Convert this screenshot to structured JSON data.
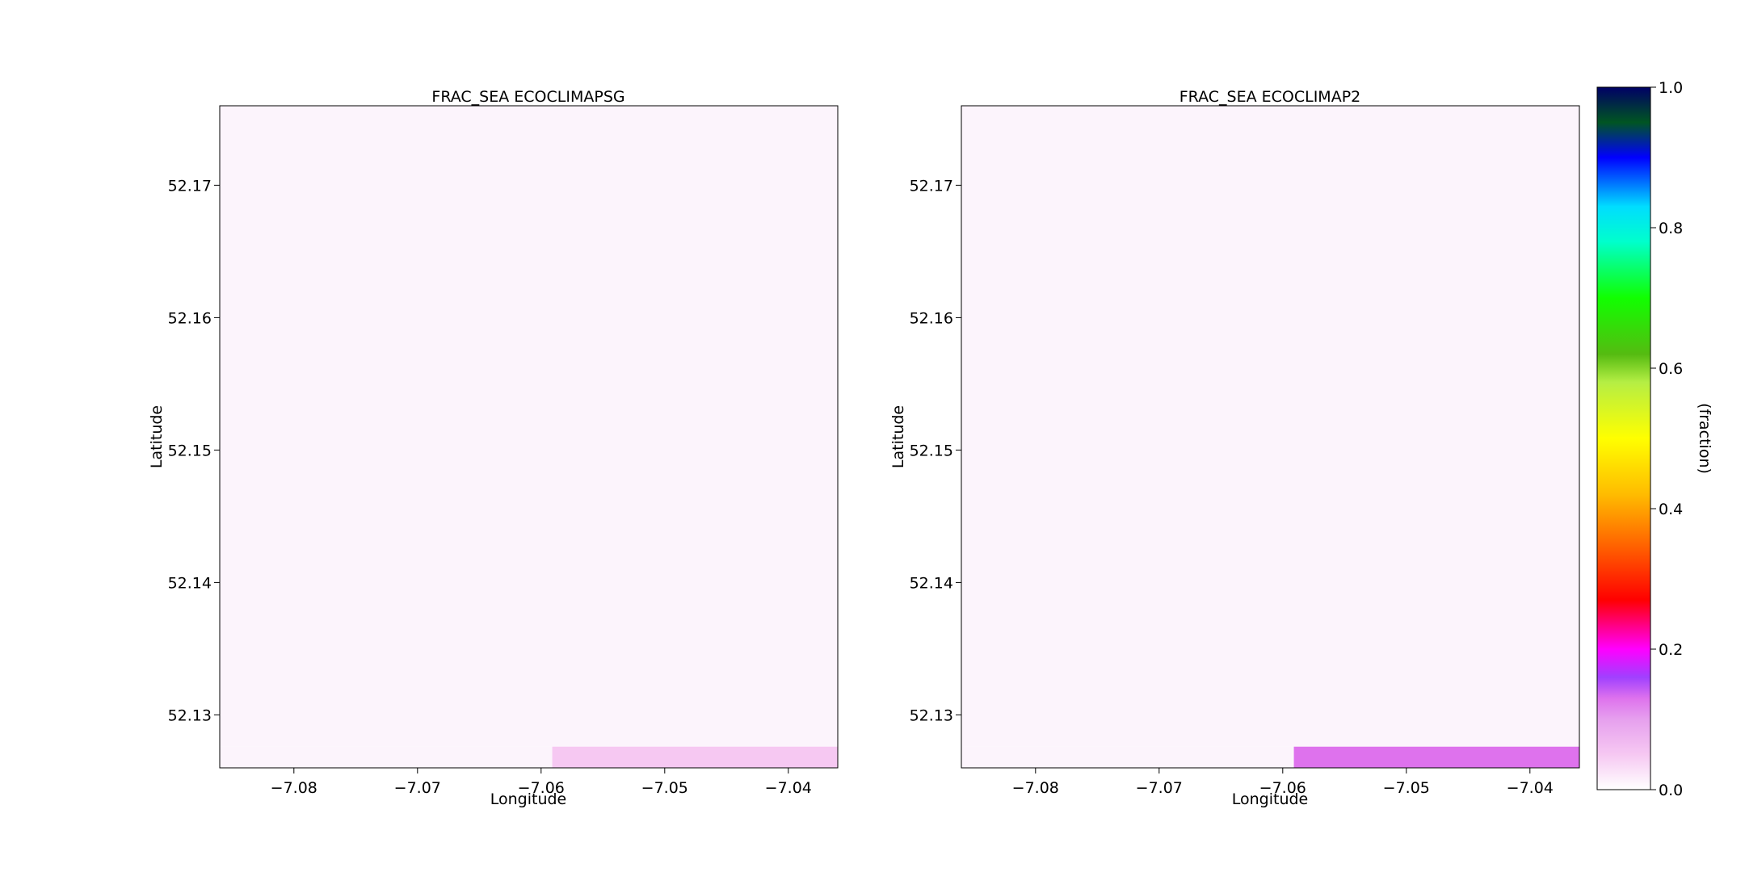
{
  "chart_data": [
    {
      "type": "heatmap",
      "title": "FRAC_SEA ECOCLIMAPSG",
      "xlabel": "Longitude",
      "ylabel": "Latitude",
      "xlim": [
        -7.086,
        -7.036
      ],
      "ylim": [
        52.126,
        52.176
      ],
      "xticks": [
        -7.08,
        -7.07,
        -7.06,
        -7.05,
        -7.04
      ],
      "xtick_labels": [
        "−7.08",
        "−7.07",
        "−7.06",
        "−7.05",
        "−7.04"
      ],
      "yticks": [
        52.13,
        52.14,
        52.15,
        52.16,
        52.17
      ],
      "ytick_labels": [
        "52.13",
        "52.14",
        "52.15",
        "52.16",
        "52.17"
      ],
      "cells": [
        {
          "x0": -7.086,
          "x1": -7.036,
          "y0": 52.1276,
          "y1": 52.176,
          "value": 0.0
        },
        {
          "x0": -7.086,
          "x1": -7.0591,
          "y0": 52.126,
          "y1": 52.1276,
          "value": 0.0
        },
        {
          "x0": -7.0591,
          "x1": -7.036,
          "y0": 52.126,
          "y1": 52.1276,
          "value": 0.05
        }
      ]
    },
    {
      "type": "heatmap",
      "title": "FRAC_SEA ECOCLIMAP2",
      "xlabel": "Longitude",
      "ylabel": "Latitude",
      "xlim": [
        -7.086,
        -7.036
      ],
      "ylim": [
        52.126,
        52.176
      ],
      "xticks": [
        -7.08,
        -7.07,
        -7.06,
        -7.05,
        -7.04
      ],
      "xtick_labels": [
        "−7.08",
        "−7.07",
        "−7.06",
        "−7.05",
        "−7.04"
      ],
      "yticks": [
        52.13,
        52.14,
        52.15,
        52.16,
        52.17
      ],
      "ytick_labels": [
        "52.13",
        "52.14",
        "52.15",
        "52.16",
        "52.17"
      ],
      "cells": [
        {
          "x0": -7.086,
          "x1": -7.036,
          "y0": 52.1276,
          "y1": 52.176,
          "value": 0.0
        },
        {
          "x0": -7.086,
          "x1": -7.0591,
          "y0": 52.126,
          "y1": 52.1276,
          "value": 0.0
        },
        {
          "x0": -7.0591,
          "x1": -7.036,
          "y0": 52.126,
          "y1": 52.1276,
          "value": 0.13
        }
      ]
    }
  ],
  "colorbar": {
    "label": "(fraction)",
    "range": [
      0.0,
      1.0
    ],
    "ticks": [
      0.0,
      0.2,
      0.4,
      0.6,
      0.8,
      1.0
    ],
    "tick_labels": [
      "0.0",
      "0.2",
      "0.4",
      "0.6",
      "0.8",
      "1.0"
    ],
    "colormap": [
      {
        "v": 0.0,
        "c": "#ffffff"
      },
      {
        "v": 0.05,
        "c": "#f6c8f2"
      },
      {
        "v": 0.1,
        "c": "#e6a0ee"
      },
      {
        "v": 0.13,
        "c": "#de72ed"
      },
      {
        "v": 0.16,
        "c": "#a040ff"
      },
      {
        "v": 0.2,
        "c": "#ff00ff"
      },
      {
        "v": 0.27,
        "c": "#ff0000"
      },
      {
        "v": 0.35,
        "c": "#ff6600"
      },
      {
        "v": 0.42,
        "c": "#ffbb00"
      },
      {
        "v": 0.5,
        "c": "#ffff00"
      },
      {
        "v": 0.58,
        "c": "#b5ee44"
      },
      {
        "v": 0.62,
        "c": "#55bb11"
      },
      {
        "v": 0.7,
        "c": "#11ff00"
      },
      {
        "v": 0.78,
        "c": "#00ffcc"
      },
      {
        "v": 0.83,
        "c": "#00ddff"
      },
      {
        "v": 0.9,
        "c": "#0000ff"
      },
      {
        "v": 0.95,
        "c": "#005522"
      },
      {
        "v": 1.0,
        "c": "#000066"
      }
    ],
    "zero_color": "#fcf4fc"
  }
}
